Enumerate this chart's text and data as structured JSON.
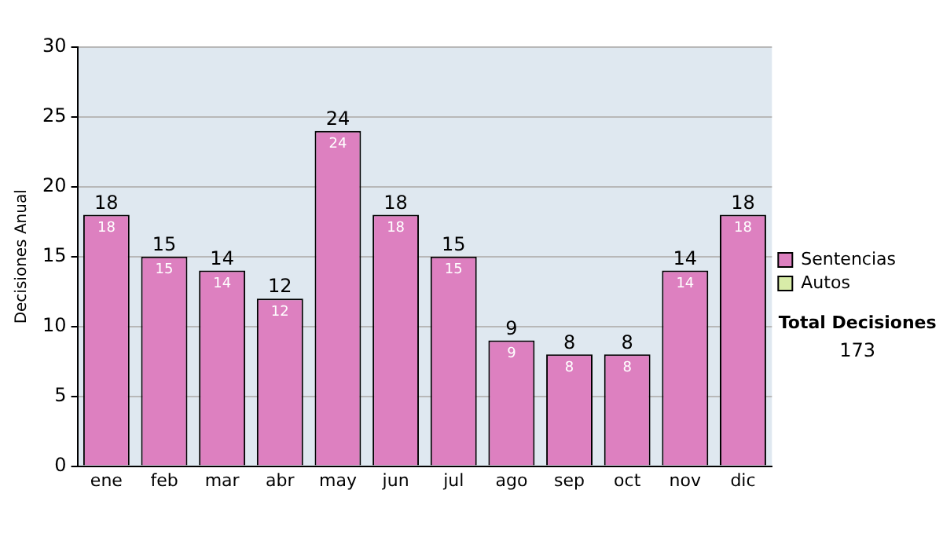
{
  "chart_data": {
    "type": "bar",
    "stacked": true,
    "ylabel": "Decisiones Anual",
    "categories": [
      "ene",
      "feb",
      "mar",
      "abr",
      "may",
      "jun",
      "jul",
      "ago",
      "sep",
      "oct",
      "nov",
      "dic"
    ],
    "series": [
      {
        "name": "Sentencias",
        "color": "#dd80c0",
        "values": [
          18,
          15,
          14,
          12,
          24,
          18,
          15,
          9,
          8,
          8,
          14,
          18
        ],
        "value_labels": [
          "18",
          "15",
          "14",
          "12",
          "24",
          "18",
          "15",
          "9",
          "8",
          "8",
          "14",
          "18"
        ]
      },
      {
        "name": "Autos",
        "color": "#d8eca8",
        "values": [
          0,
          0,
          0,
          0,
          0,
          0,
          0,
          0,
          0,
          0,
          0,
          0
        ]
      }
    ],
    "totals": [
      "18",
      "15",
      "14",
      "12",
      "24",
      "18",
      "15",
      "9",
      "8",
      "8",
      "14",
      "18"
    ],
    "ylim": [
      0,
      30
    ],
    "yticks": [
      0,
      5,
      10,
      15,
      20,
      25,
      30
    ],
    "grid": "y",
    "legend": "right",
    "annotations": [
      "Total Decisiones",
      "173"
    ]
  }
}
